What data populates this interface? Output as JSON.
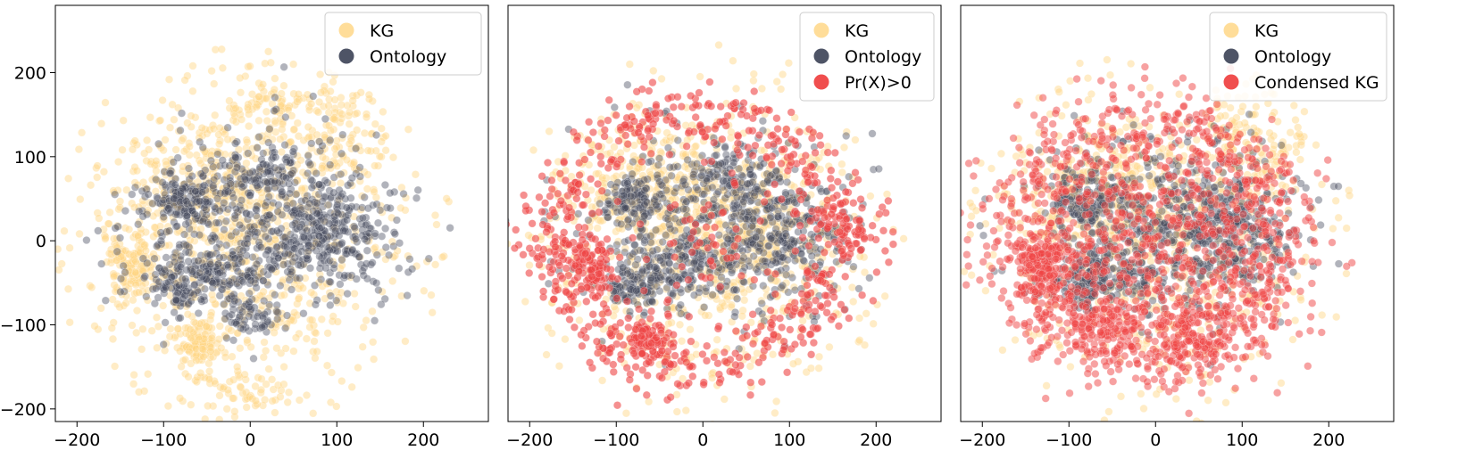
{
  "figure": {
    "panel_count": 3
  },
  "chart_data": [
    {
      "type": "scatter",
      "title": "",
      "xlabel": "",
      "ylabel": "",
      "xlim": [
        -225,
        275
      ],
      "ylim": [
        -215,
        280
      ],
      "x_ticks": [
        -200,
        -100,
        0,
        100,
        200
      ],
      "y_ticks": [
        200,
        100,
        0,
        -100,
        -200
      ],
      "x_tick_labels": [
        "−200",
        "−100",
        "0",
        "100",
        "200"
      ],
      "y_tick_labels": [
        "200",
        "100",
        "0",
        "−100",
        "−200"
      ],
      "grid": false,
      "legend_position": "top-right",
      "series": [
        {
          "name": "KG",
          "color": "#FFD580",
          "alpha": 0.45,
          "count": 1400,
          "clusters": [
            {
              "cx": 0,
              "cy": 0,
              "sx": 95,
              "sy": 95,
              "w": 0.55
            },
            {
              "cx": -135,
              "cy": -30,
              "sx": 15,
              "sy": 20,
              "w": 0.08
            },
            {
              "cx": -60,
              "cy": -120,
              "sx": 14,
              "sy": 14,
              "w": 0.06
            },
            {
              "cx": 110,
              "cy": 120,
              "sx": 30,
              "sy": 30,
              "w": 0.08
            },
            {
              "cx": 20,
              "cy": 160,
              "sx": 40,
              "sy": 25,
              "w": 0.06
            },
            {
              "cx": -20,
              "cy": -180,
              "sx": 40,
              "sy": 15,
              "w": 0.05
            },
            {
              "cx": -60,
              "cy": 60,
              "sx": 50,
              "sy": 40,
              "w": 0.12
            }
          ]
        },
        {
          "name": "Ontology",
          "color": "#454B5E",
          "alpha": 0.42,
          "count": 1100,
          "clusters": [
            {
              "cx": -75,
              "cy": 50,
              "sx": 20,
              "sy": 15,
              "w": 0.12
            },
            {
              "cx": 90,
              "cy": 10,
              "sx": 35,
              "sy": 30,
              "w": 0.18
            },
            {
              "cx": -40,
              "cy": -35,
              "sx": 35,
              "sy": 15,
              "w": 0.12
            },
            {
              "cx": -80,
              "cy": -60,
              "sx": 15,
              "sy": 12,
              "w": 0.06
            },
            {
              "cx": 25,
              "cy": 80,
              "sx": 25,
              "sy": 15,
              "w": 0.07
            },
            {
              "cx": 0,
              "cy": -90,
              "sx": 15,
              "sy": 10,
              "w": 0.04
            },
            {
              "cx": 10,
              "cy": 20,
              "sx": 80,
              "sy": 55,
              "w": 0.41
            }
          ]
        }
      ]
    },
    {
      "type": "scatter",
      "title": "",
      "xlabel": "",
      "ylabel": "",
      "xlim": [
        -225,
        275
      ],
      "ylim": [
        -215,
        280
      ],
      "x_ticks": [
        -200,
        -100,
        0,
        100,
        200
      ],
      "x_tick_labels": [
        "−200",
        "−100",
        "0",
        "100",
        "200"
      ],
      "grid": false,
      "legend_position": "top-right",
      "series": [
        {
          "name": "KG",
          "color": "#FFD580",
          "alpha": 0.45,
          "count": 1100,
          "clusters": [
            {
              "cx": 0,
              "cy": 0,
              "sx": 95,
              "sy": 95,
              "w": 0.6
            },
            {
              "cx": -60,
              "cy": 60,
              "sx": 50,
              "sy": 40,
              "w": 0.2
            },
            {
              "cx": 60,
              "cy": 0,
              "sx": 50,
              "sy": 40,
              "w": 0.2
            }
          ]
        },
        {
          "name": "Ontology",
          "color": "#454B5E",
          "alpha": 0.42,
          "count": 1000,
          "clusters": [
            {
              "cx": -75,
              "cy": 50,
              "sx": 20,
              "sy": 15,
              "w": 0.12
            },
            {
              "cx": 90,
              "cy": 10,
              "sx": 35,
              "sy": 30,
              "w": 0.18
            },
            {
              "cx": -40,
              "cy": -35,
              "sx": 35,
              "sy": 15,
              "w": 0.12
            },
            {
              "cx": -80,
              "cy": -60,
              "sx": 15,
              "sy": 12,
              "w": 0.06
            },
            {
              "cx": 25,
              "cy": 80,
              "sx": 25,
              "sy": 15,
              "w": 0.07
            },
            {
              "cx": 10,
              "cy": 20,
              "sx": 80,
              "sy": 55,
              "w": 0.45
            }
          ]
        },
        {
          "name": "Pr(X)>0",
          "color": "#EF4444",
          "alpha": 0.6,
          "count": 900,
          "ring": {
            "cx": -10,
            "cy": 0,
            "r": 160,
            "spread": 45,
            "w": 0.7
          },
          "clusters": [
            {
              "cx": -130,
              "cy": -30,
              "sx": 15,
              "sy": 20,
              "w": 0.1
            },
            {
              "cx": -60,
              "cy": -115,
              "sx": 15,
              "sy": 15,
              "w": 0.08
            },
            {
              "cx": 170,
              "cy": 20,
              "sx": 25,
              "sy": 20,
              "w": 0.06
            },
            {
              "cx": 0,
              "cy": 0,
              "sx": 40,
              "sy": 40,
              "w": 0.06
            }
          ]
        }
      ]
    },
    {
      "type": "scatter",
      "title": "",
      "xlabel": "",
      "ylabel": "",
      "xlim": [
        -225,
        275
      ],
      "ylim": [
        -215,
        280
      ],
      "x_ticks": [
        -200,
        -100,
        0,
        100,
        200
      ],
      "x_tick_labels": [
        "−200",
        "−100",
        "0",
        "100",
        "200"
      ],
      "grid": false,
      "legend_position": "top-right",
      "series": [
        {
          "name": "KG",
          "color": "#FFD580",
          "alpha": 0.45,
          "count": 1000,
          "clusters": [
            {
              "cx": 0,
              "cy": 0,
              "sx": 95,
              "sy": 95,
              "w": 0.6
            },
            {
              "cx": 110,
              "cy": 110,
              "sx": 35,
              "sy": 35,
              "w": 0.15
            },
            {
              "cx": -60,
              "cy": 60,
              "sx": 50,
              "sy": 40,
              "w": 0.25
            }
          ]
        },
        {
          "name": "Ontology",
          "color": "#454B5E",
          "alpha": 0.42,
          "count": 1000,
          "clusters": [
            {
              "cx": -75,
              "cy": 50,
              "sx": 20,
              "sy": 15,
              "w": 0.12
            },
            {
              "cx": 90,
              "cy": 10,
              "sx": 35,
              "sy": 30,
              "w": 0.18
            },
            {
              "cx": -40,
              "cy": -35,
              "sx": 35,
              "sy": 15,
              "w": 0.12
            },
            {
              "cx": -80,
              "cy": -60,
              "sx": 15,
              "sy": 12,
              "w": 0.06
            },
            {
              "cx": 10,
              "cy": 20,
              "sx": 80,
              "sy": 55,
              "w": 0.52
            }
          ]
        },
        {
          "name": "Condensed KG",
          "color": "#EF4444",
          "alpha": 0.5,
          "count": 1700,
          "ring": {
            "cx": -10,
            "cy": 0,
            "r": 150,
            "spread": 50,
            "w": 0.35
          },
          "clusters": [
            {
              "cx": 0,
              "cy": 0,
              "sx": 90,
              "sy": 80,
              "w": 0.45
            },
            {
              "cx": -130,
              "cy": -30,
              "sx": 15,
              "sy": 20,
              "w": 0.08
            },
            {
              "cx": -60,
              "cy": -100,
              "sx": 25,
              "sy": 20,
              "w": 0.06
            },
            {
              "cx": 40,
              "cy": -110,
              "sx": 30,
              "sy": 20,
              "w": 0.06
            }
          ]
        }
      ]
    }
  ]
}
